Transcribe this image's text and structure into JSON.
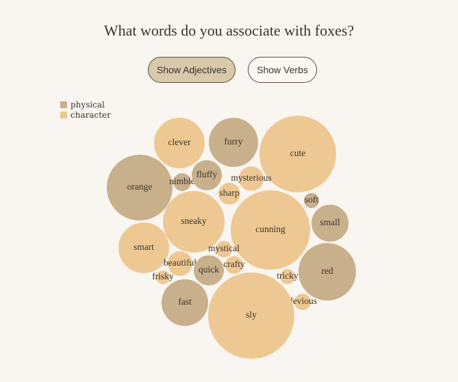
{
  "title": "What words do you associate with foxes?",
  "buttons": {
    "adjectives": "Show Adjectives",
    "verbs": "Show Verbs"
  },
  "legend": [
    {
      "label": "physical",
      "category": "physical"
    },
    {
      "label": "character",
      "category": "character"
    }
  ],
  "colors": {
    "physical": "#c8b08c",
    "character": "#eec893"
  },
  "words": [
    {
      "word": "clever",
      "category": "character"
    },
    {
      "word": "furry",
      "category": "physical"
    },
    {
      "word": "cute",
      "category": "character"
    },
    {
      "word": "orange",
      "category": "physical"
    },
    {
      "word": "nimble",
      "category": "physical"
    },
    {
      "word": "fluffy",
      "category": "physical"
    },
    {
      "word": "mysterious",
      "category": "character"
    },
    {
      "word": "sharp",
      "category": "character"
    },
    {
      "word": "soft",
      "category": "physical"
    },
    {
      "word": "sneaky",
      "category": "character"
    },
    {
      "word": "cunning",
      "category": "character"
    },
    {
      "word": "small",
      "category": "physical"
    },
    {
      "word": "smart",
      "category": "character"
    },
    {
      "word": "mystical",
      "category": "character"
    },
    {
      "word": "beautiful",
      "category": "character"
    },
    {
      "word": "crafty",
      "category": "character"
    },
    {
      "word": "quick",
      "category": "physical"
    },
    {
      "word": "frisky",
      "category": "character"
    },
    {
      "word": "tricky",
      "category": "character"
    },
    {
      "word": "red",
      "category": "physical"
    },
    {
      "word": "fast",
      "category": "physical"
    },
    {
      "word": "devious",
      "category": "character"
    },
    {
      "word": "sly",
      "category": "character"
    }
  ]
}
